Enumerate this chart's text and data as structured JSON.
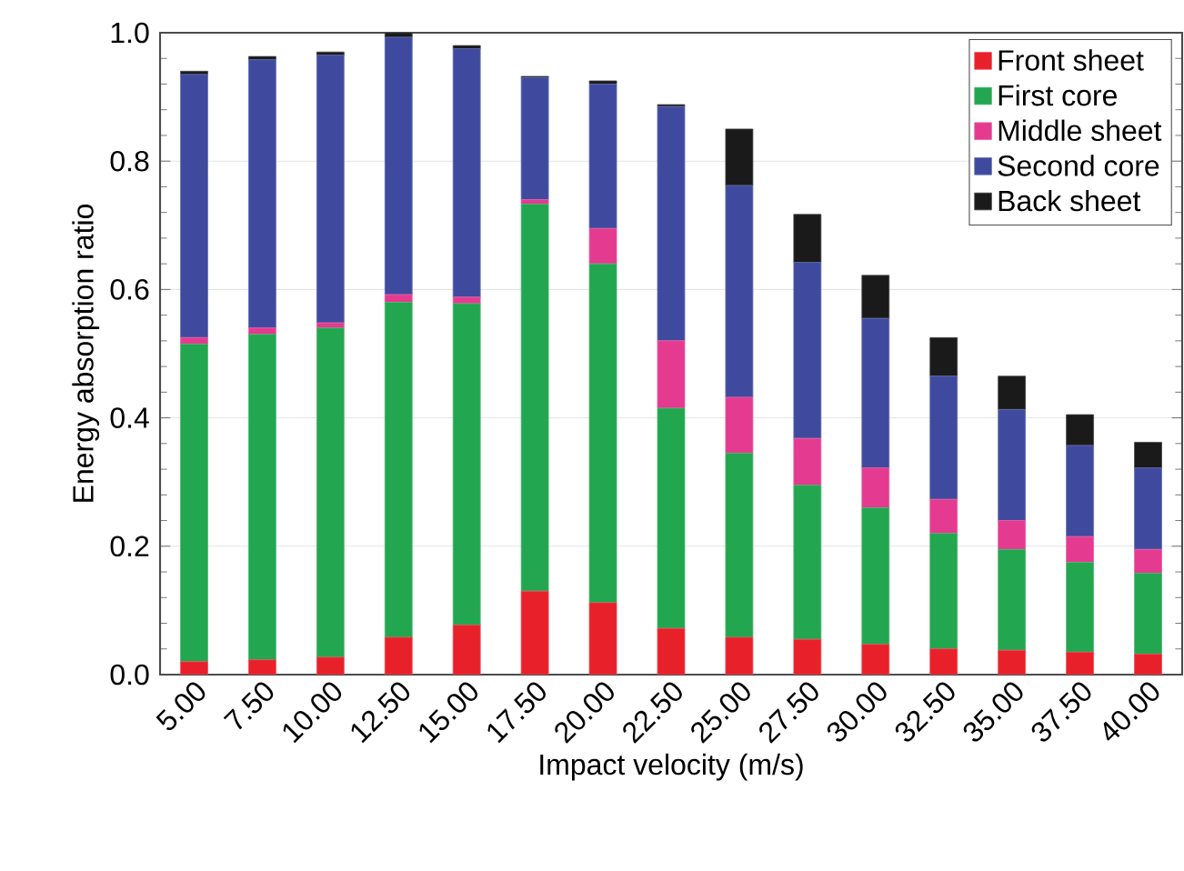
{
  "chart_data": {
    "type": "bar",
    "stacked": true,
    "xlabel": "Impact velocity (m/s)",
    "ylabel": "Energy absorption ratio",
    "categories": [
      "5.00",
      "7.50",
      "10.00",
      "12.50",
      "15.00",
      "17.50",
      "20.00",
      "22.50",
      "25.00",
      "27.50",
      "30.00",
      "32.50",
      "35.00",
      "37.50",
      "40.00"
    ],
    "ylim": [
      0,
      1.0
    ],
    "yticks": [
      {
        "value": 0,
        "label": "0.0"
      },
      {
        "value": 0.2,
        "label": "0.2"
      },
      {
        "value": 0.4,
        "label": "0.4"
      },
      {
        "value": 0.6,
        "label": "0.6"
      },
      {
        "value": 0.8,
        "label": "0.8"
      },
      {
        "value": 1.0,
        "label": "1.0"
      }
    ],
    "grid": "y",
    "legend": "top right",
    "series": [
      {
        "name": "Front sheet",
        "color": "#e8202a",
        "values": [
          0.02,
          0.023,
          0.027,
          0.058,
          0.077,
          0.13,
          0.112,
          0.072,
          0.058,
          0.055,
          0.047,
          0.04,
          0.038,
          0.035,
          0.032
        ]
      },
      {
        "name": "First core",
        "color": "#22a650",
        "values": [
          0.495,
          0.507,
          0.513,
          0.522,
          0.501,
          0.603,
          0.528,
          0.343,
          0.287,
          0.24,
          0.213,
          0.18,
          0.157,
          0.14,
          0.126
        ]
      },
      {
        "name": "Middle sheet",
        "color": "#e43a8f",
        "values": [
          0.01,
          0.01,
          0.008,
          0.012,
          0.01,
          0.007,
          0.055,
          0.105,
          0.087,
          0.073,
          0.062,
          0.053,
          0.045,
          0.04,
          0.037
        ]
      },
      {
        "name": "Second core",
        "color": "#3f4a9f",
        "values": [
          0.41,
          0.418,
          0.417,
          0.401,
          0.387,
          0.19,
          0.225,
          0.365,
          0.33,
          0.274,
          0.233,
          0.192,
          0.173,
          0.142,
          0.127
        ]
      },
      {
        "name": "Back sheet",
        "color": "#1a1a1a",
        "values": [
          0.005,
          0.005,
          0.005,
          0.007,
          0.005,
          0.002,
          0.005,
          0.003,
          0.088,
          0.075,
          0.067,
          0.06,
          0.052,
          0.048,
          0.04
        ]
      }
    ]
  }
}
